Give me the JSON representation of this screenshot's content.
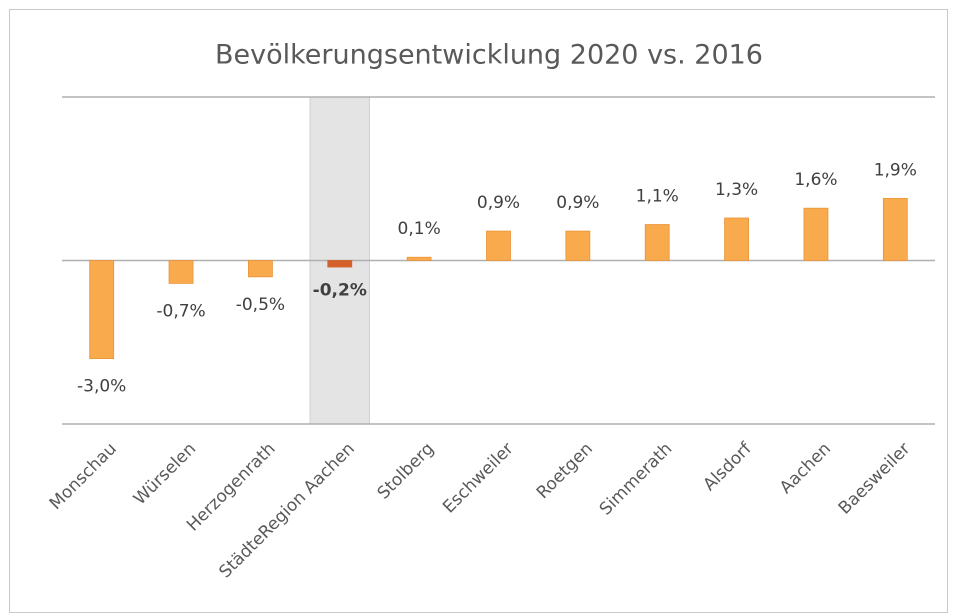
{
  "chart_data": {
    "type": "bar",
    "title": "Bevölkerungsentwicklung 2020 vs. 2016",
    "categories": [
      "Monschau",
      "Würselen",
      "Herzogenrath",
      "StädteRegion Aachen",
      "Stolberg",
      "Eschweiler",
      "Roetgen",
      "Simmerath",
      "Alsdorf",
      "Aachen",
      "Baesweiler"
    ],
    "values": [
      -3.0,
      -0.7,
      -0.5,
      -0.2,
      0.1,
      0.9,
      0.9,
      1.1,
      1.3,
      1.6,
      1.9
    ],
    "value_labels": [
      "-3,0%",
      "-0,7%",
      "-0,5%",
      "-0,2%",
      "0,1%",
      "0,9%",
      "0,9%",
      "1,1%",
      "1,3%",
      "1,6%",
      "1,9%"
    ],
    "color": "#f9aa4c",
    "highlight_index": 3,
    "highlight_color": "#d4612a",
    "highlight_band_color": "#e4e4e4",
    "ylim": [
      -5,
      5
    ],
    "yticks": [
      -5,
      0,
      5
    ],
    "show_ytick_labels": false,
    "grid": true
  }
}
